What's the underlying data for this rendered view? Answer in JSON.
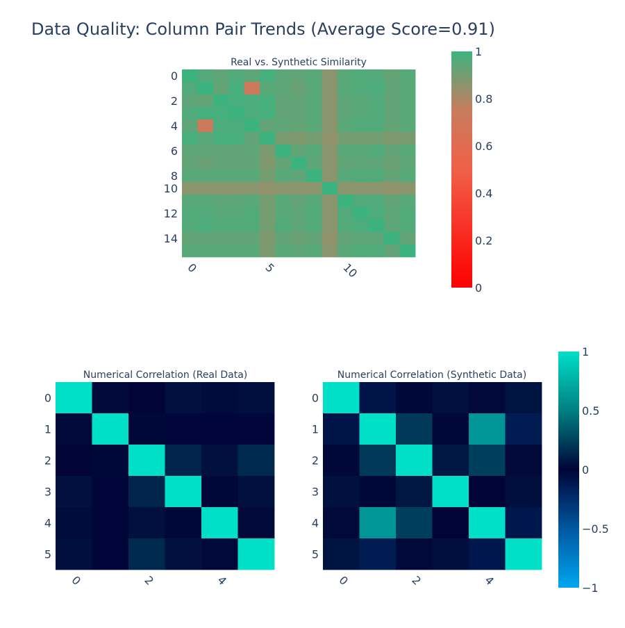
{
  "title": "Data Quality: Column Pair Trends (Average Score=0.91)",
  "chart_data": [
    {
      "type": "heatmap",
      "title": "Real vs. Synthetic Similarity",
      "x": [
        0,
        1,
        2,
        3,
        4,
        5,
        6,
        7,
        8,
        9,
        10,
        11,
        12,
        13,
        14
      ],
      "y": [
        0,
        1,
        2,
        3,
        4,
        5,
        6,
        7,
        8,
        9,
        10,
        11,
        12,
        13,
        14
      ],
      "x_ticklabels": [
        "0",
        "5",
        "10"
      ],
      "y_ticklabels": [
        "0",
        "2",
        "4",
        "6",
        "8",
        "10",
        "12",
        "14"
      ],
      "zmin": 0,
      "zmax": 1,
      "colorscale": [
        "#ff0000",
        "#c87c5e",
        "#3cb37f"
      ],
      "colorbar_ticks": [
        "0",
        "0.2",
        "0.4",
        "0.6",
        "0.8",
        "1"
      ],
      "z": [
        [
          1.0,
          0.96,
          0.94,
          0.96,
          0.94,
          0.98,
          0.94,
          0.93,
          0.95,
          0.86,
          0.95,
          0.96,
          0.96,
          0.93,
          0.95
        ],
        [
          0.96,
          1.0,
          0.93,
          0.98,
          0.72,
          0.95,
          0.94,
          0.92,
          0.95,
          0.86,
          0.95,
          0.96,
          0.97,
          0.93,
          0.95
        ],
        [
          0.94,
          0.93,
          1.0,
          0.98,
          0.97,
          0.98,
          0.93,
          0.93,
          0.95,
          0.86,
          0.94,
          0.95,
          0.96,
          0.93,
          0.95
        ],
        [
          0.96,
          0.98,
          0.98,
          1.0,
          0.97,
          0.98,
          0.93,
          0.93,
          0.95,
          0.86,
          0.94,
          0.95,
          0.96,
          0.93,
          0.95
        ],
        [
          0.94,
          0.72,
          0.97,
          0.97,
          1.0,
          0.93,
          0.94,
          0.93,
          0.95,
          0.86,
          0.95,
          0.96,
          0.96,
          0.93,
          0.95
        ],
        [
          0.98,
          0.95,
          0.98,
          0.98,
          0.93,
          1.0,
          0.89,
          0.88,
          0.9,
          0.85,
          0.9,
          0.9,
          0.9,
          0.88,
          0.89
        ],
        [
          0.94,
          0.94,
          0.93,
          0.93,
          0.94,
          0.89,
          1.0,
          0.93,
          0.95,
          0.86,
          0.95,
          0.95,
          0.96,
          0.93,
          0.95
        ],
        [
          0.93,
          0.92,
          0.93,
          0.93,
          0.93,
          0.88,
          0.93,
          1.0,
          0.94,
          0.86,
          0.93,
          0.94,
          0.94,
          0.92,
          0.94
        ],
        [
          0.95,
          0.95,
          0.95,
          0.95,
          0.95,
          0.9,
          0.95,
          0.94,
          1.0,
          0.86,
          0.95,
          0.96,
          0.96,
          0.93,
          0.95
        ],
        [
          0.86,
          0.86,
          0.86,
          0.86,
          0.86,
          0.85,
          0.86,
          0.86,
          0.86,
          1.0,
          0.86,
          0.86,
          0.86,
          0.85,
          0.86
        ],
        [
          0.95,
          0.95,
          0.94,
          0.94,
          0.95,
          0.9,
          0.95,
          0.93,
          0.95,
          0.86,
          1.0,
          0.96,
          0.96,
          0.93,
          0.95
        ],
        [
          0.96,
          0.96,
          0.95,
          0.95,
          0.96,
          0.9,
          0.95,
          0.94,
          0.96,
          0.86,
          0.96,
          1.0,
          0.97,
          0.94,
          0.96
        ],
        [
          0.96,
          0.97,
          0.96,
          0.96,
          0.96,
          0.9,
          0.96,
          0.94,
          0.96,
          0.86,
          0.96,
          0.97,
          1.0,
          0.94,
          0.96
        ],
        [
          0.93,
          0.93,
          0.93,
          0.93,
          0.93,
          0.88,
          0.93,
          0.92,
          0.93,
          0.85,
          0.93,
          0.94,
          0.94,
          1.0,
          0.93
        ],
        [
          0.95,
          0.95,
          0.95,
          0.95,
          0.95,
          0.89,
          0.95,
          0.94,
          0.95,
          0.86,
          0.95,
          0.96,
          0.96,
          0.93,
          1.0
        ]
      ]
    },
    {
      "type": "heatmap",
      "title": "Numerical Correlation (Real Data)",
      "x": [
        0,
        1,
        2,
        3,
        4,
        5
      ],
      "y": [
        0,
        1,
        2,
        3,
        4,
        5
      ],
      "x_ticklabels": [
        "0",
        "2",
        "4"
      ],
      "y_ticklabels": [
        "0",
        "1",
        "2",
        "3",
        "4",
        "5"
      ],
      "zmin": -1,
      "zmax": 1,
      "colorscale": [
        "#00a6f0",
        "#000437",
        "#00e0c8"
      ],
      "colorbar_ticks": [
        "−1",
        "−0.5",
        "0",
        "0.5",
        "1"
      ],
      "z": [
        [
          1.0,
          0.02,
          0.0,
          0.05,
          0.03,
          0.04
        ],
        [
          0.02,
          1.0,
          0.01,
          -0.01,
          -0.01,
          -0.01
        ],
        [
          0.0,
          0.01,
          1.0,
          0.12,
          0.05,
          0.14
        ],
        [
          0.05,
          -0.01,
          0.12,
          1.0,
          0.01,
          0.05
        ],
        [
          0.03,
          -0.01,
          0.05,
          0.01,
          1.0,
          0.02
        ],
        [
          0.04,
          -0.01,
          0.14,
          0.05,
          0.02,
          1.0
        ]
      ]
    },
    {
      "type": "heatmap",
      "title": "Numerical Correlation (Synthetic Data)",
      "x": [
        0,
        1,
        2,
        3,
        4,
        5
      ],
      "y": [
        0,
        1,
        2,
        3,
        4,
        5
      ],
      "x_ticklabels": [
        "0",
        "2",
        "4"
      ],
      "y_ticklabels": [
        "0",
        "1",
        "2",
        "3",
        "4",
        "5"
      ],
      "zmin": -1,
      "zmax": 1,
      "colorscale": [
        "#00a6f0",
        "#000437",
        "#00e0c8"
      ],
      "colorbar_ticks": [
        "−1",
        "−0.5",
        "0",
        "0.5",
        "1"
      ],
      "z": [
        [
          1.0,
          -0.1,
          0.01,
          0.05,
          0.02,
          0.06
        ],
        [
          -0.1,
          1.0,
          0.2,
          0.01,
          0.55,
          -0.15
        ],
        [
          0.01,
          0.2,
          1.0,
          0.07,
          0.22,
          0.02
        ],
        [
          0.05,
          0.01,
          0.07,
          1.0,
          0.0,
          0.04
        ],
        [
          0.02,
          0.55,
          0.22,
          0.0,
          1.0,
          -0.12
        ],
        [
          0.06,
          -0.15,
          0.02,
          0.04,
          -0.12,
          1.0
        ]
      ]
    }
  ]
}
